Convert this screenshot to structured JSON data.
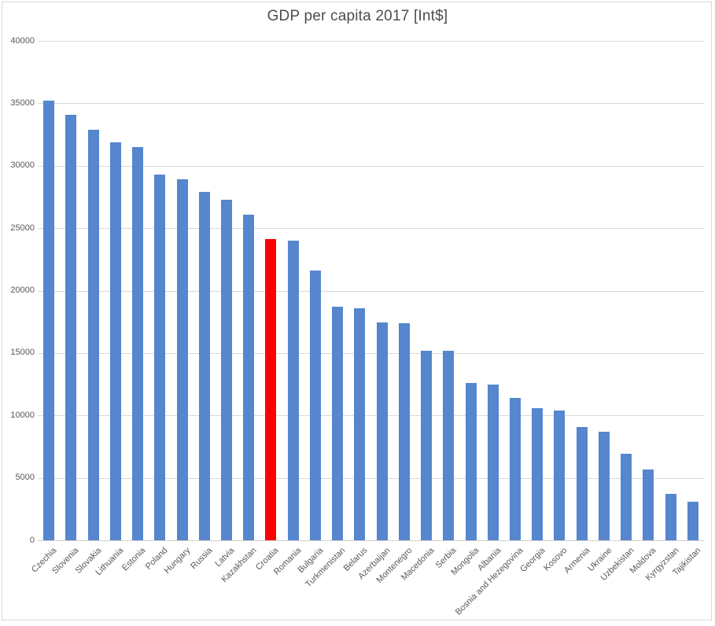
{
  "chart_data": {
    "type": "bar",
    "title": "GDP per capita  2017 [Int$]",
    "categories": [
      "Czechia",
      "Slovenia",
      "Slovakia",
      "Lithuania",
      "Estonia",
      "Poland",
      "Hungary",
      "Russia",
      "Latvia",
      "Kazakhstan",
      "Croatia",
      "Romania",
      "Bulgaria",
      "Turkmenistan",
      "Belarus",
      "Azerbaijan",
      "Montenegro",
      "Macedonia",
      "Serbia",
      "Mongolia",
      "Albania",
      "Bosnia and Hezegovina",
      "Georgia",
      "Kosovo",
      "Armenia",
      "Ukraine",
      "Uzbekistan",
      "Moldova",
      "Kyrgyzstan",
      "Tajikistan"
    ],
    "values": [
      35200,
      34100,
      32900,
      31900,
      31500,
      29300,
      28900,
      27900,
      27300,
      26100,
      24100,
      24000,
      21600,
      18700,
      18600,
      17450,
      17400,
      15200,
      15150,
      12600,
      12500,
      11400,
      10600,
      10400,
      9100,
      8700,
      6900,
      5700,
      3700,
      3100
    ],
    "highlight_category": "Croatia",
    "xlabel": "",
    "ylabel": "",
    "ylim": [
      0,
      40000
    ],
    "ytick_interval": 5000,
    "yticks": [
      "0",
      "5000",
      "10000",
      "15000",
      "20000",
      "25000",
      "30000",
      "35000",
      "40000"
    ],
    "grid": true,
    "legend": "none",
    "colors": {
      "bar": "#5586CE",
      "highlight": "#FF0000",
      "gridline": "#D9D9D9",
      "axis_line": "#D0D0D0",
      "tick_label": "#595959",
      "title": "#4D4D4D",
      "chart_border": "#D9D9D9",
      "background": "#FFFFFF"
    }
  }
}
